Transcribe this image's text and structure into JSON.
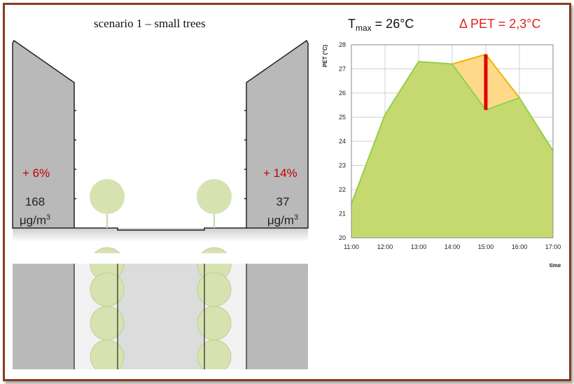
{
  "scenario": {
    "title": "scenario 1 – small trees"
  },
  "left_building": {
    "pct": "+ 6%",
    "value": "168",
    "unit": "μg/m",
    "unit_sup": "3"
  },
  "right_building": {
    "pct": "+ 14%",
    "value": "37",
    "unit": "μg/m",
    "unit_sup": "3"
  },
  "chart_header": {
    "tmax_label": "T",
    "tmax_sub": "max",
    "tmax_value": " = 26°C",
    "delta_pet": "Δ PET = 2,3°C"
  },
  "colors": {
    "frame": "#8b3a1e",
    "building": "#b9b9b9",
    "tree": "#d6e3b0",
    "area_green": "#c6d970",
    "area_orange": "#ffd98a",
    "delta_bar": "#e00000"
  },
  "chart_data": {
    "type": "area",
    "title": "",
    "xlabel": "time",
    "ylabel": "PET (°C)",
    "categories": [
      "11:00",
      "12:00",
      "13:00",
      "14:00",
      "15:00",
      "16:00",
      "17:00"
    ],
    "ylim": [
      20,
      28
    ],
    "yticks": [
      "20",
      "21",
      "22",
      "23",
      "24",
      "25",
      "26",
      "27",
      "28"
    ],
    "grid": true,
    "series": [
      {
        "values": [
          21.4,
          25.1,
          27.3,
          27.2,
          27.6,
          25.8,
          23.6
        ]
      },
      {
        "values": [
          21.4,
          25.1,
          27.3,
          27.2,
          25.3,
          25.8,
          23.6
        ]
      }
    ],
    "delta_marker": {
      "x": "15:00",
      "from": 25.3,
      "to": 27.6
    }
  }
}
